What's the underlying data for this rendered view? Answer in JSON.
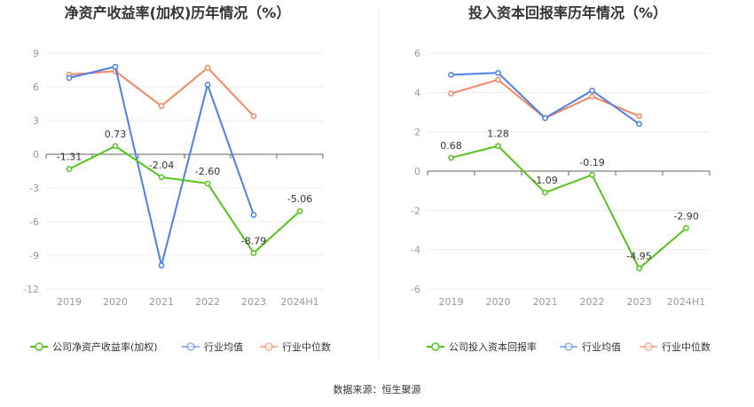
{
  "chart_data": [
    {
      "type": "line",
      "title": "净资产收益率(加权)历年情况（%）",
      "categories": [
        "2019",
        "2020",
        "2021",
        "2022",
        "2023",
        "2024H1"
      ],
      "y_ticks": [
        "9",
        "6",
        "3",
        "0",
        "-3",
        "-6",
        "-9",
        "-12"
      ],
      "ylim": [
        -12,
        9
      ],
      "grid": true,
      "legend_position": "bottom",
      "series": [
        {
          "name": "公司净资产收益率(加权)",
          "color": "#52c41a",
          "values": [
            -1.31,
            0.73,
            -2.04,
            -2.6,
            -8.79,
            -5.06
          ],
          "labels": [
            "-1.31",
            "0.73",
            "-2.04",
            "-2.60",
            "-8.79",
            "-5.06"
          ]
        },
        {
          "name": "行业均值",
          "color": "#4e7fe6",
          "values": [
            6.8,
            7.8,
            -9.9,
            6.2,
            -5.4,
            null
          ]
        },
        {
          "name": "行业中位数",
          "color": "#f4875e",
          "values": [
            7.1,
            7.4,
            4.3,
            7.7,
            3.4,
            null
          ]
        }
      ]
    },
    {
      "type": "line",
      "title": "投入资本回报率历年情况（%）",
      "categories": [
        "2019",
        "2020",
        "2021",
        "2022",
        "2023",
        "2024H1"
      ],
      "y_ticks": [
        "6",
        "4",
        "2",
        "0",
        "-2",
        "-4",
        "-6"
      ],
      "ylim": [
        -6,
        6
      ],
      "grid": true,
      "legend_position": "bottom",
      "series": [
        {
          "name": "公司投入资本回报率",
          "color": "#52c41a",
          "values": [
            0.68,
            1.28,
            -1.09,
            -0.19,
            -4.95,
            -2.9
          ],
          "labels": [
            "0.68",
            "1.28",
            "-1.09",
            "-0.19",
            "-4.95",
            "-2.90"
          ]
        },
        {
          "name": "行业均值",
          "color": "#4e7fe6",
          "values": [
            4.9,
            5.0,
            2.7,
            4.1,
            2.4,
            null
          ]
        },
        {
          "name": "行业中位数",
          "color": "#f4875e",
          "values": [
            3.95,
            4.65,
            2.7,
            3.8,
            2.8,
            null
          ]
        }
      ]
    }
  ],
  "footer": {
    "source": "数据来源：恒生聚源"
  }
}
